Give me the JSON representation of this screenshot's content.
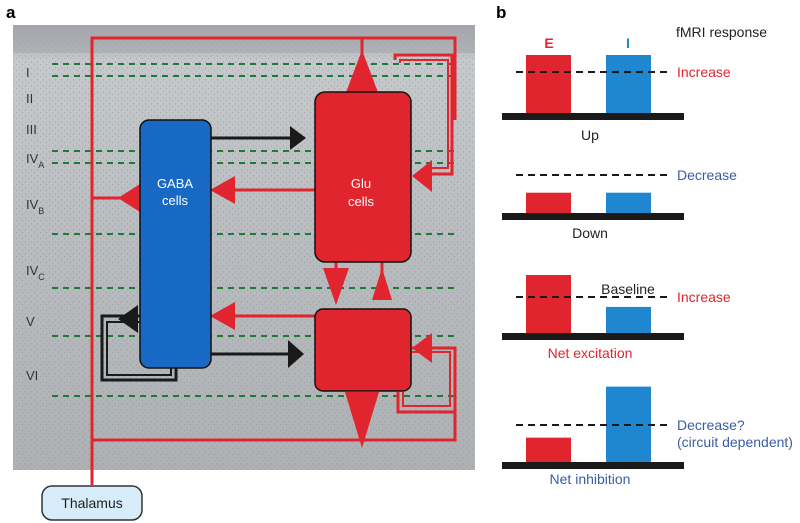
{
  "panel_a": {
    "label": "a",
    "layers": [
      {
        "main": "I",
        "sub": ""
      },
      {
        "main": "II",
        "sub": ""
      },
      {
        "main": "III",
        "sub": ""
      },
      {
        "main": "IV",
        "sub": "A"
      },
      {
        "main": "IV",
        "sub": "B"
      },
      {
        "main": "IV",
        "sub": "C"
      },
      {
        "main": "V",
        "sub": ""
      },
      {
        "main": "VI",
        "sub": ""
      }
    ],
    "gaba_line1": "GABA",
    "gaba_line2": "cells",
    "glu_line1": "Glu",
    "glu_line2": "cells",
    "thalamus": "Thalamus",
    "colors": {
      "excitatory": "#e0252e",
      "inhibitory": "#1a1a1a",
      "gaba": "#1769c4",
      "dashed": "#1f7a3a"
    }
  },
  "panel_b": {
    "label": "b",
    "header_e": "E",
    "header_i": "I",
    "title": "fMRI response",
    "colors": {
      "E": "#e0252e",
      "I": "#1f86d0"
    },
    "scenarios": [
      {
        "caption": "Up",
        "E": 1.0,
        "I": 1.0,
        "response": "Increase",
        "response2": "",
        "response_color": "#e0252e",
        "caption_color": "#222222",
        "baseline_text": ""
      },
      {
        "caption": "Down",
        "E": 0.35,
        "I": 0.35,
        "response": "Decrease",
        "response2": "",
        "response_color": "#3a5ca8",
        "caption_color": "#222222",
        "baseline_text": ""
      },
      {
        "caption": "Net excitation",
        "E": 1.0,
        "I": 0.45,
        "response": "Increase",
        "response2": "",
        "response_color": "#e0252e",
        "caption_color": "#e0252e",
        "baseline_text": "Baseline"
      },
      {
        "caption": "Net inhibition",
        "E": 0.42,
        "I": 1.3,
        "response": "Decrease?",
        "response2": "(circuit dependent)",
        "response_color": "#3a5ca8",
        "caption_color": "#3a5ca8",
        "baseline_text": ""
      }
    ]
  }
}
